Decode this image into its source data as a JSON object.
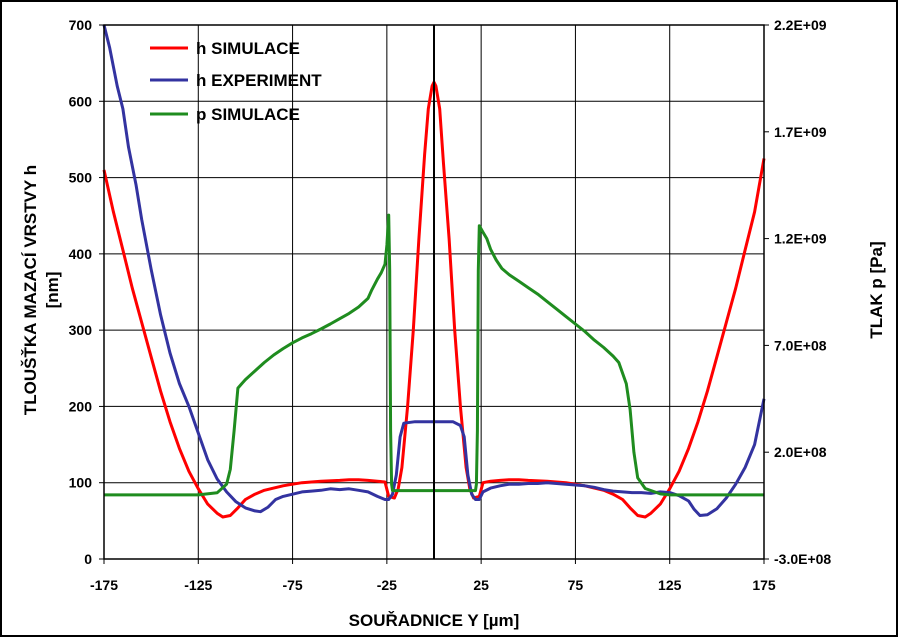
{
  "chart_data": {
    "type": "line",
    "xlabel": "SOUŘADNICE Y [µm]",
    "ylabel": "TLOUŠŤKA MAZACÍ VRSTVY h",
    "ylabel_unit": "[nm]",
    "y2label": "TLAK p [Pa]",
    "xlim": [
      -175,
      175
    ],
    "ylim": [
      0,
      700
    ],
    "y2lim": [
      -300000000,
      2200000000
    ],
    "xticks": [
      "-175",
      "-125",
      "-75",
      "-25",
      "25",
      "75",
      "125",
      "175"
    ],
    "yticks": [
      "0",
      "100",
      "200",
      "300",
      "400",
      "500",
      "600",
      "700"
    ],
    "y2ticks": [
      "-3.0E+08",
      "2.0E+08",
      "7.0E+08",
      "1.2E+09",
      "1.7E+09",
      "2.2E+09"
    ],
    "grid": true,
    "legend_position": "top-left",
    "series": [
      {
        "name": "h SIMULACE",
        "axis": "left",
        "color": "#ff0000",
        "points": [
          [
            -175,
            510
          ],
          [
            -170,
            455
          ],
          [
            -165,
            405
          ],
          [
            -160,
            355
          ],
          [
            -155,
            310
          ],
          [
            -150,
            265
          ],
          [
            -145,
            220
          ],
          [
            -140,
            180
          ],
          [
            -135,
            145
          ],
          [
            -130,
            115
          ],
          [
            -125,
            92
          ],
          [
            -120,
            72
          ],
          [
            -115,
            60
          ],
          [
            -112,
            55
          ],
          [
            -108,
            57
          ],
          [
            -104,
            67
          ],
          [
            -100,
            78
          ],
          [
            -95,
            85
          ],
          [
            -90,
            90
          ],
          [
            -85,
            93
          ],
          [
            -80,
            96
          ],
          [
            -75,
            98
          ],
          [
            -70,
            100
          ],
          [
            -60,
            102
          ],
          [
            -50,
            103
          ],
          [
            -45,
            104
          ],
          [
            -40,
            104
          ],
          [
            -35,
            103
          ],
          [
            -30,
            102
          ],
          [
            -26,
            101
          ],
          [
            -24,
            82
          ],
          [
            -21,
            80
          ],
          [
            -19,
            92
          ],
          [
            -17,
            120
          ],
          [
            -14,
            200
          ],
          [
            -11,
            300
          ],
          [
            -8,
            420
          ],
          [
            -5,
            530
          ],
          [
            -3,
            590
          ],
          [
            -1,
            620
          ],
          [
            0,
            625
          ],
          [
            1,
            620
          ],
          [
            3,
            590
          ],
          [
            5,
            520
          ],
          [
            8,
            420
          ],
          [
            11,
            300
          ],
          [
            14,
            200
          ],
          [
            17,
            120
          ],
          [
            19,
            92
          ],
          [
            21,
            80
          ],
          [
            24,
            82
          ],
          [
            26,
            100
          ],
          [
            30,
            102
          ],
          [
            35,
            103
          ],
          [
            40,
            104
          ],
          [
            45,
            104
          ],
          [
            50,
            103
          ],
          [
            60,
            102
          ],
          [
            70,
            100
          ],
          [
            75,
            98
          ],
          [
            80,
            96
          ],
          [
            85,
            93
          ],
          [
            90,
            90
          ],
          [
            95,
            85
          ],
          [
            100,
            78
          ],
          [
            104,
            67
          ],
          [
            108,
            57
          ],
          [
            112,
            55
          ],
          [
            115,
            60
          ],
          [
            120,
            72
          ],
          [
            125,
            92
          ],
          [
            130,
            115
          ],
          [
            135,
            145
          ],
          [
            140,
            180
          ],
          [
            145,
            220
          ],
          [
            150,
            265
          ],
          [
            155,
            310
          ],
          [
            160,
            355
          ],
          [
            165,
            405
          ],
          [
            170,
            455
          ],
          [
            175,
            525
          ]
        ]
      },
      {
        "name": "h EXPERIMENT",
        "axis": "left",
        "color": "#3333a0",
        "points": [
          [
            -175,
            700
          ],
          [
            -172,
            670
          ],
          [
            -168,
            620
          ],
          [
            -165,
            590
          ],
          [
            -162,
            540
          ],
          [
            -158,
            490
          ],
          [
            -155,
            445
          ],
          [
            -150,
            380
          ],
          [
            -145,
            320
          ],
          [
            -140,
            270
          ],
          [
            -135,
            230
          ],
          [
            -130,
            200
          ],
          [
            -125,
            165
          ],
          [
            -120,
            130
          ],
          [
            -115,
            105
          ],
          [
            -110,
            88
          ],
          [
            -105,
            75
          ],
          [
            -100,
            67
          ],
          [
            -95,
            63
          ],
          [
            -92,
            62
          ],
          [
            -88,
            68
          ],
          [
            -84,
            78
          ],
          [
            -80,
            82
          ],
          [
            -75,
            85
          ],
          [
            -70,
            88
          ],
          [
            -65,
            89
          ],
          [
            -60,
            90
          ],
          [
            -55,
            92
          ],
          [
            -50,
            91
          ],
          [
            -45,
            92
          ],
          [
            -40,
            90
          ],
          [
            -35,
            88
          ],
          [
            -30,
            82
          ],
          [
            -26,
            78
          ],
          [
            -24,
            78
          ],
          [
            -22,
            85
          ],
          [
            -20,
            110
          ],
          [
            -18,
            160
          ],
          [
            -16,
            178
          ],
          [
            -10,
            180
          ],
          [
            -5,
            180
          ],
          [
            0,
            180
          ],
          [
            5,
            180
          ],
          [
            10,
            180
          ],
          [
            14,
            175
          ],
          [
            16,
            160
          ],
          [
            18,
            110
          ],
          [
            20,
            85
          ],
          [
            22,
            78
          ],
          [
            24,
            78
          ],
          [
            26,
            88
          ],
          [
            30,
            93
          ],
          [
            35,
            96
          ],
          [
            40,
            98
          ],
          [
            45,
            98
          ],
          [
            50,
            99
          ],
          [
            55,
            99
          ],
          [
            60,
            100
          ],
          [
            65,
            99
          ],
          [
            70,
            98
          ],
          [
            75,
            97
          ],
          [
            80,
            96
          ],
          [
            85,
            94
          ],
          [
            90,
            91
          ],
          [
            95,
            89
          ],
          [
            100,
            88
          ],
          [
            105,
            87
          ],
          [
            110,
            87
          ],
          [
            115,
            86
          ],
          [
            120,
            88
          ],
          [
            125,
            87
          ],
          [
            130,
            83
          ],
          [
            135,
            76
          ],
          [
            138,
            65
          ],
          [
            141,
            57
          ],
          [
            145,
            58
          ],
          [
            150,
            66
          ],
          [
            155,
            80
          ],
          [
            160,
            98
          ],
          [
            165,
            120
          ],
          [
            170,
            150
          ],
          [
            175,
            210
          ]
        ]
      },
      {
        "name": "p SIMULACE",
        "axis": "right",
        "color": "#1f8c1f",
        "points": [
          [
            -175,
            0
          ],
          [
            -150,
            0
          ],
          [
            -125,
            0
          ],
          [
            -115,
            10000000
          ],
          [
            -110,
            50000000
          ],
          [
            -108,
            120000000
          ],
          [
            -106,
            300000000
          ],
          [
            -104,
            500000000
          ],
          [
            -102,
            520000000
          ],
          [
            -100,
            540000000
          ],
          [
            -95,
            580000000
          ],
          [
            -90,
            620000000
          ],
          [
            -85,
            655000000
          ],
          [
            -80,
            685000000
          ],
          [
            -75,
            712000000
          ],
          [
            -70,
            735000000
          ],
          [
            -65,
            755000000
          ],
          [
            -60,
            777000000
          ],
          [
            -55,
            800000000
          ],
          [
            -50,
            825000000
          ],
          [
            -45,
            850000000
          ],
          [
            -40,
            880000000
          ],
          [
            -35,
            920000000
          ],
          [
            -33,
            960000000
          ],
          [
            -30,
            1010000000
          ],
          [
            -28,
            1040000000
          ],
          [
            -26,
            1080000000
          ],
          [
            -25,
            1170000000
          ],
          [
            -24,
            1310000000
          ],
          [
            -23.5,
            1050000000
          ],
          [
            -23,
            300000000
          ],
          [
            -22.5,
            50000000
          ],
          [
            -22,
            20000000
          ],
          [
            -20,
            20000000
          ],
          [
            0,
            20000000
          ],
          [
            20,
            20000000
          ],
          [
            22,
            20000000
          ],
          [
            22.5,
            50000000
          ],
          [
            23,
            300000000
          ],
          [
            23.5,
            1050000000
          ],
          [
            24,
            1260000000
          ],
          [
            26,
            1230000000
          ],
          [
            28,
            1200000000
          ],
          [
            30,
            1150000000
          ],
          [
            33,
            1100000000
          ],
          [
            36,
            1060000000
          ],
          [
            40,
            1030000000
          ],
          [
            45,
            1000000000
          ],
          [
            50,
            970000000
          ],
          [
            55,
            940000000
          ],
          [
            60,
            905000000
          ],
          [
            65,
            870000000
          ],
          [
            70,
            835000000
          ],
          [
            75,
            800000000
          ],
          [
            80,
            765000000
          ],
          [
            85,
            725000000
          ],
          [
            90,
            690000000
          ],
          [
            95,
            650000000
          ],
          [
            98,
            620000000
          ],
          [
            100,
            570000000
          ],
          [
            102,
            520000000
          ],
          [
            104,
            400000000
          ],
          [
            106,
            200000000
          ],
          [
            108,
            80000000
          ],
          [
            112,
            30000000
          ],
          [
            120,
            5000000
          ],
          [
            125,
            0
          ],
          [
            150,
            0
          ],
          [
            175,
            0
          ]
        ]
      }
    ]
  }
}
